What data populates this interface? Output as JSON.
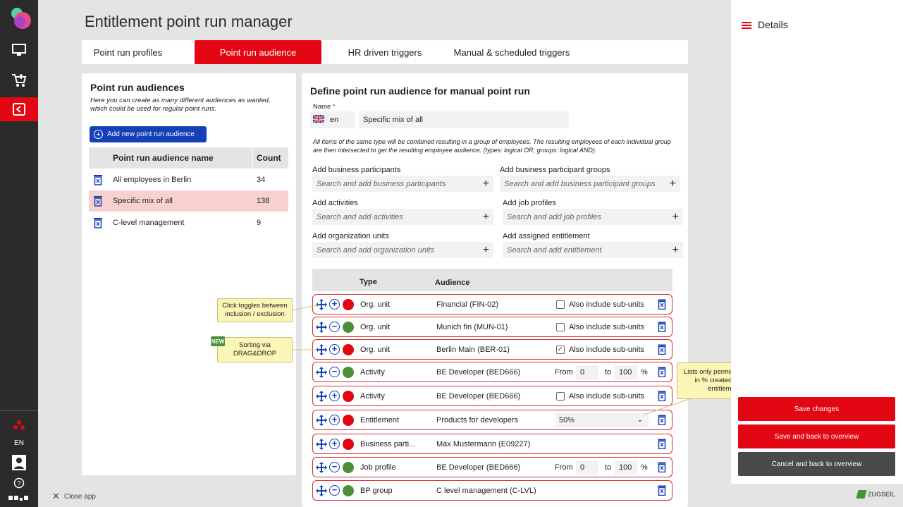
{
  "app": {
    "title": "Entitlement point run manager"
  },
  "rail": {
    "language": "EN",
    "icons": [
      "logo-icon",
      "monitor-icon",
      "cart-icon",
      "exit-icon",
      "org-icon",
      "user-icon",
      "help-icon",
      "apps-icon"
    ]
  },
  "tabs": [
    "Point run profiles",
    "Point run audience",
    "HR driven triggers",
    "Manual & scheduled triggers"
  ],
  "left": {
    "title": "Point run audiences",
    "description": "Here you can create as many different audiences as wanted, which could be used for regular point runs.",
    "add_button": "Add new point run audience",
    "col_name": "Point run audience name",
    "col_count": "Count",
    "rows": [
      {
        "name": "All employees in Berlin",
        "count": "34"
      },
      {
        "name": "Specific mix of all",
        "count": "138"
      },
      {
        "name": "C-level management",
        "count": "9"
      }
    ]
  },
  "center": {
    "title": "Define point run audience for manual point run",
    "name_label": "Name",
    "required_mark": "*",
    "lang": "en",
    "name_value": "Specific mix of all",
    "info": "All items of the same type will be combined resulting in a group of employees. The resulting employees of each individual group are then intersected to get the resulting employee audience. (types: logical OR, groups: logical AND).",
    "fields": [
      {
        "label": "Add business participants",
        "placeholder": "Search and add business participants"
      },
      {
        "label": "Add business participant groups",
        "placeholder": "Search and add business participant groups"
      },
      {
        "label": "Add activities",
        "placeholder": "Search and add activities"
      },
      {
        "label": "Add job profiles",
        "placeholder": "Search and add job profiles"
      },
      {
        "label": "Add organization units",
        "placeholder": "Search and add organization units"
      },
      {
        "label": "Add assigned entitlement",
        "placeholder": "Search and add entitlement"
      }
    ],
    "col_type": "Type",
    "col_audience": "Audience",
    "rows": [
      {
        "type": "Org. unit",
        "audience": "Financial (FIN-02)",
        "mode": "include",
        "extra": "Also include sub-units",
        "checked": ""
      },
      {
        "type": "Org. unit",
        "audience": "Munich fin (MUN-01)",
        "mode": "exclude",
        "extra": "Also include sub-units",
        "checked": ""
      },
      {
        "type": "Org. unit",
        "audience": "Berlin Main (BER-01)",
        "mode": "include",
        "extra": "Also include sub-units",
        "checked": "✓"
      },
      {
        "type": "Activity",
        "audience": "BE Developer (BED666)",
        "mode": "exclude",
        "from": "From",
        "from_val": "0",
        "to": "to",
        "to_val": "100",
        "unit": "%"
      },
      {
        "type": "Activity",
        "audience": "BE Developer (BED666)",
        "mode": "include",
        "extra": "Also include sub-units",
        "checked": ""
      },
      {
        "type": "Entitlement",
        "audience": "Products for developers",
        "mode": "include",
        "select": "50%"
      },
      {
        "type": "Business parti...",
        "audience": "Max Mustermann (E09227)",
        "mode": "include"
      },
      {
        "type": "Job profile",
        "audience": "BE Developer (BED666)",
        "mode": "exclude",
        "from": "From",
        "from_val": "0",
        "to": "to",
        "to_val": "100",
        "unit": "%"
      },
      {
        "type": "BP group",
        "audience": "C level management (C-LVL)",
        "mode": "exclude"
      }
    ]
  },
  "tooltips": {
    "toggle": "Click toggles between inclusion / exclusion",
    "sort": "Sorting via DRAG&DROP",
    "new": "NEW",
    "permission": "Lists only permission levels in % created for this entitlement"
  },
  "details": {
    "title": "Details"
  },
  "actions": {
    "save": "Save changes",
    "save_back": "Save and back to overview",
    "cancel": "Cancel and back to overview"
  },
  "footer": {
    "close": "Close app",
    "brand": "ZUGSEIL"
  },
  "colors": {
    "accent": "#e30613",
    "blue": "#1440b8",
    "green": "#4b8f3a",
    "dark": "#2b2b2b"
  }
}
